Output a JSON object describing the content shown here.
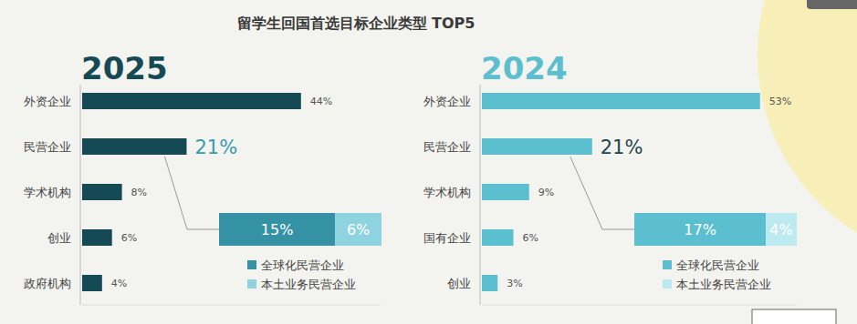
{
  "title": "留学生回国首选目标企业类型 TOP5",
  "chart_data": [
    {
      "type": "bar",
      "title": "2025",
      "orientation": "horizontal",
      "color": "#154a55",
      "categories": [
        "外资企业",
        "民营企业",
        "学术机构",
        "创业",
        "政府机构"
      ],
      "values": [
        44,
        21,
        8,
        6,
        4
      ],
      "value_labels": [
        "44%",
        "21%",
        "8%",
        "6%",
        "4%"
      ],
      "data_labels": true,
      "tick_labels": "y",
      "grid": false,
      "xlim": [
        0,
        60
      ]
    },
    {
      "type": "bar",
      "orientation": "horizontal",
      "stacked": true,
      "data_labels": true,
      "legend": "bottom",
      "xlim": [
        0,
        21
      ],
      "series": [
        {
          "name": "全球化民营企业",
          "color": "#3592a5",
          "values": [
            15
          ],
          "value_labels": [
            "15%"
          ]
        },
        {
          "name": "本土业务民营企业",
          "color": "#8fd3e0",
          "values": [
            6
          ],
          "value_labels": [
            "6%"
          ]
        }
      ]
    },
    {
      "type": "bar",
      "title": "2024",
      "orientation": "horizontal",
      "color": "#5bbfcf",
      "categories": [
        "外资企业",
        "民营企业",
        "学术机构",
        "国有企业",
        "创业"
      ],
      "values": [
        53,
        21,
        9,
        6,
        3
      ],
      "value_labels": [
        "53%",
        "21%",
        "9%",
        "6%",
        "3%"
      ],
      "data_labels": true,
      "tick_labels": "y",
      "grid": false,
      "xlim": [
        0,
        60
      ]
    },
    {
      "type": "bar",
      "orientation": "horizontal",
      "stacked": true,
      "data_labels": true,
      "legend": "bottom",
      "xlim": [
        0,
        21
      ],
      "series": [
        {
          "name": "全球化民营企业",
          "color": "#5bbfcf",
          "values": [
            17
          ],
          "value_labels": [
            "17%"
          ]
        },
        {
          "name": "本土业务民营企业",
          "color": "#bdeaf1",
          "values": [
            4
          ],
          "value_labels": [
            "4%"
          ]
        }
      ]
    }
  ]
}
